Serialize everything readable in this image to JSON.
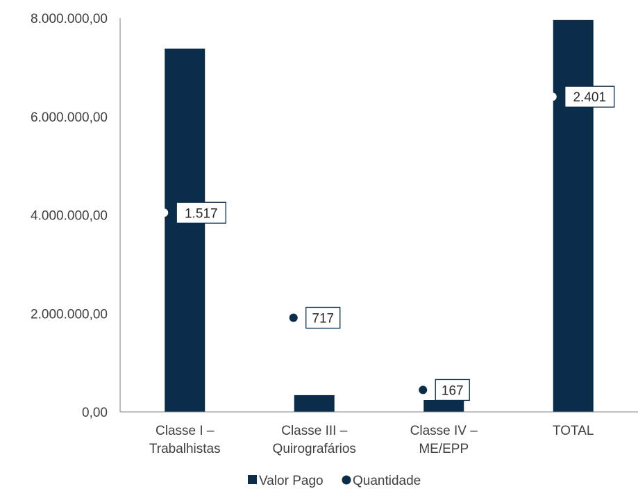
{
  "chart_data": {
    "type": "bar",
    "categories": [
      [
        "Classe I –",
        "Trabalhistas"
      ],
      [
        "Classe III –",
        "Quirografários"
      ],
      [
        "Classe IV –",
        "ME/EPP"
      ],
      [
        "TOTAL"
      ]
    ],
    "series": [
      {
        "name": "Valor Pago",
        "type": "bar",
        "axis": "primary",
        "values": [
          7380000,
          340000,
          240000,
          7960000
        ],
        "color": "#0b2d4a"
      },
      {
        "name": "Quantidade",
        "type": "scatter",
        "axis": "secondary",
        "values": [
          1517,
          717,
          167,
          2401
        ],
        "labels": [
          "1.517",
          "717",
          "167",
          "2.401"
        ],
        "color": "#0b2d4a",
        "marker_colors": [
          "#ffffff",
          "#0b2d4a",
          "#0b2d4a",
          "#ffffff"
        ]
      }
    ],
    "y_ticks": [
      "0,00",
      "2.000.000,00",
      "4.000.000,00",
      "6.000.000,00",
      "8.000.000,00"
    ],
    "ylim": [
      0,
      8000000
    ],
    "y2lim": [
      0,
      3000
    ],
    "grid": false,
    "legend_position": "bottom",
    "axis_color": "#7f7f7f",
    "text_color": "#404040"
  }
}
